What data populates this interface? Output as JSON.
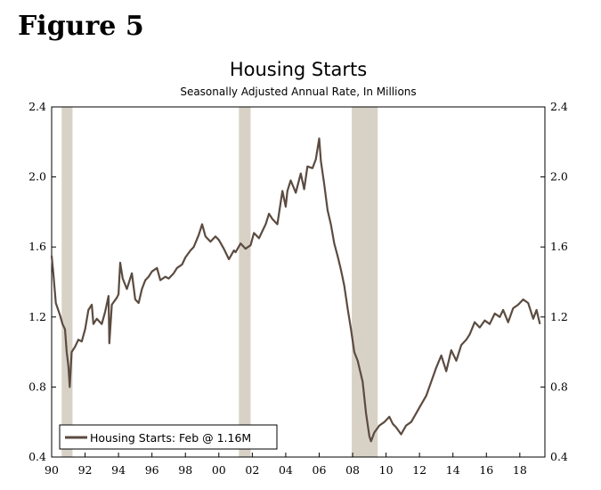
{
  "figure_label": "Figure 5",
  "chart_data": {
    "type": "line",
    "title": "Housing Starts",
    "subtitle": "Seasonally Adjusted Annual Rate, In Millions",
    "xlabel": "",
    "ylabel": "",
    "xlim": [
      1990,
      2019.5
    ],
    "ylim": [
      0.4,
      2.4
    ],
    "x_ticks": [
      1990,
      1992,
      1994,
      1996,
      1998,
      2000,
      2002,
      2004,
      2006,
      2008,
      2010,
      2012,
      2014,
      2016,
      2018
    ],
    "x_tick_labels": [
      "90",
      "92",
      "94",
      "96",
      "98",
      "00",
      "02",
      "04",
      "06",
      "08",
      "10",
      "12",
      "14",
      "16",
      "18"
    ],
    "y_ticks": [
      0.4,
      0.8,
      1.2,
      1.6,
      2.0,
      2.4
    ],
    "y_tick_labels": [
      "0.4",
      "0.8",
      "1.2",
      "1.6",
      "2.0",
      "2.4"
    ],
    "grid": false,
    "recessions": [
      [
        1990.6,
        1991.25
      ],
      [
        2001.2,
        2001.9
      ],
      [
        2007.95,
        2009.5
      ]
    ],
    "legend": {
      "label": "Housing Starts: Feb @ 1.16M",
      "position": "bottom-left"
    },
    "colors": {
      "line": "#5b4b40",
      "recession": "#d8d2c6",
      "axis": "#000000"
    },
    "series": [
      {
        "name": "Housing Starts",
        "x": [
          1990.0,
          1990.1,
          1990.25,
          1990.5,
          1990.65,
          1990.8,
          1990.9,
          1991.0,
          1991.08,
          1991.2,
          1991.4,
          1991.6,
          1991.8,
          1992.0,
          1992.2,
          1992.4,
          1992.5,
          1992.7,
          1993.0,
          1993.2,
          1993.4,
          1993.45,
          1993.6,
          1993.9,
          1994.0,
          1994.1,
          1994.25,
          1994.5,
          1994.8,
          1995.0,
          1995.2,
          1995.4,
          1995.6,
          1995.8,
          1996.0,
          1996.3,
          1996.5,
          1996.8,
          1997.0,
          1997.3,
          1997.5,
          1997.8,
          1998.0,
          1998.3,
          1998.5,
          1998.8,
          1999.0,
          1999.2,
          1999.5,
          1999.8,
          2000.0,
          2000.3,
          2000.6,
          2000.9,
          2001.0,
          2001.3,
          2001.6,
          2001.9,
          2002.1,
          2002.4,
          2002.6,
          2002.8,
          2003.0,
          2003.2,
          2003.5,
          2003.8,
          2004.0,
          2004.1,
          2004.3,
          2004.6,
          2004.9,
          2005.1,
          2005.3,
          2005.6,
          2005.8,
          2006.0,
          2006.1,
          2006.3,
          2006.5,
          2006.7,
          2006.9,
          2007.1,
          2007.3,
          2007.5,
          2007.7,
          2007.9,
          2008.1,
          2008.3,
          2008.6,
          2008.8,
          2009.0,
          2009.1,
          2009.3,
          2009.6,
          2009.9,
          2010.2,
          2010.4,
          2010.6,
          2010.9,
          2011.2,
          2011.5,
          2011.8,
          2012.1,
          2012.4,
          2012.7,
          2013.0,
          2013.3,
          2013.6,
          2013.9,
          2014.2,
          2014.5,
          2014.8,
          2015.0,
          2015.3,
          2015.6,
          2015.9,
          2016.2,
          2016.5,
          2016.8,
          2017.0,
          2017.3,
          2017.6,
          2017.9,
          2018.2,
          2018.5,
          2018.8,
          2019.0,
          2019.2
        ],
        "values": [
          1.55,
          1.45,
          1.28,
          1.21,
          1.16,
          1.13,
          1.0,
          0.92,
          0.8,
          1.0,
          1.03,
          1.07,
          1.06,
          1.13,
          1.24,
          1.27,
          1.16,
          1.19,
          1.16,
          1.23,
          1.32,
          1.05,
          1.27,
          1.31,
          1.33,
          1.51,
          1.42,
          1.36,
          1.45,
          1.3,
          1.28,
          1.36,
          1.41,
          1.43,
          1.46,
          1.48,
          1.41,
          1.43,
          1.42,
          1.45,
          1.48,
          1.5,
          1.54,
          1.58,
          1.6,
          1.67,
          1.73,
          1.66,
          1.63,
          1.66,
          1.64,
          1.59,
          1.53,
          1.58,
          1.57,
          1.62,
          1.59,
          1.61,
          1.68,
          1.65,
          1.69,
          1.73,
          1.79,
          1.76,
          1.73,
          1.92,
          1.83,
          1.92,
          1.98,
          1.91,
          2.02,
          1.93,
          2.06,
          2.05,
          2.1,
          2.22,
          2.09,
          1.96,
          1.81,
          1.73,
          1.62,
          1.55,
          1.47,
          1.38,
          1.25,
          1.13,
          1.0,
          0.95,
          0.83,
          0.65,
          0.52,
          0.49,
          0.54,
          0.58,
          0.6,
          0.63,
          0.59,
          0.57,
          0.53,
          0.58,
          0.6,
          0.65,
          0.7,
          0.75,
          0.83,
          0.91,
          0.98,
          0.89,
          1.01,
          0.95,
          1.04,
          1.07,
          1.1,
          1.17,
          1.14,
          1.18,
          1.16,
          1.22,
          1.2,
          1.24,
          1.17,
          1.25,
          1.27,
          1.3,
          1.28,
          1.19,
          1.24,
          1.16
        ]
      }
    ]
  }
}
